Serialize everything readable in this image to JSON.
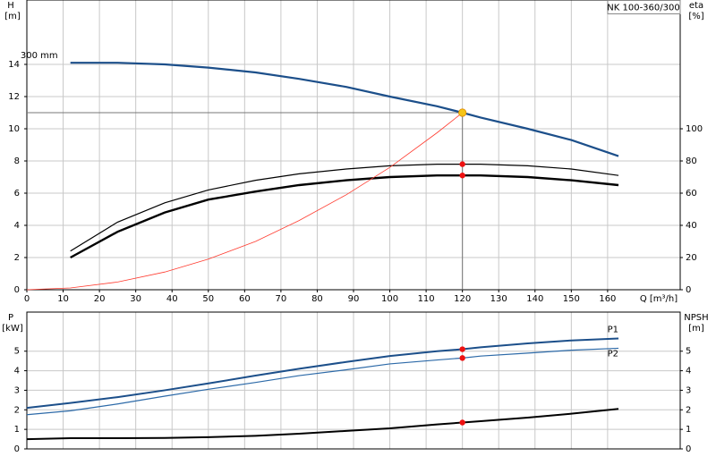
{
  "chart_data": [
    {
      "type": "line",
      "title": "NK 100-360/300",
      "xlabel": "Q [m³/h]",
      "ylabel": "H",
      "yunit": "[m]",
      "y2label": "eta",
      "y2unit": "[%]",
      "x": [
        0,
        12,
        25,
        38,
        50,
        63,
        75,
        88,
        100,
        113,
        120,
        125,
        138,
        150,
        163
      ],
      "xlim": [
        0,
        180
      ],
      "xticks": [
        0,
        10,
        20,
        30,
        40,
        50,
        60,
        70,
        80,
        90,
        100,
        110,
        120,
        130,
        140,
        150,
        160
      ],
      "ylim": [
        0,
        18
      ],
      "yticks": [
        0,
        2,
        4,
        6,
        8,
        10,
        12,
        14
      ],
      "y2lim": [
        0,
        180
      ],
      "y2ticks": [
        0,
        20,
        40,
        60,
        80,
        100
      ],
      "grid": true,
      "series": [
        {
          "name": "300 mm",
          "color": "#1c4f8a",
          "axis": "y",
          "values": [
            null,
            14.1,
            14.1,
            14.0,
            13.8,
            13.5,
            13.1,
            12.6,
            12.0,
            11.4,
            11.0,
            10.7,
            10.0,
            9.3,
            8.3
          ]
        },
        {
          "color": "#000000",
          "axis": "y2",
          "values": [
            null,
            24,
            42,
            54,
            62,
            68,
            72,
            75,
            77,
            78,
            78,
            78,
            77,
            75,
            71
          ]
        },
        {
          "color": "#000000",
          "axis": "y2",
          "values": [
            null,
            20,
            36,
            48,
            56,
            61,
            65,
            68,
            70,
            71,
            71,
            71,
            70,
            68,
            65
          ]
        },
        {
          "color": "#ff3b2f",
          "axis": "y",
          "values": [
            0,
            0.11,
            0.48,
            1.1,
            1.9,
            3.0,
            4.3,
            5.9,
            7.6,
            9.75,
            11.0,
            null,
            null,
            null,
            null
          ]
        }
      ],
      "operating_point": {
        "x": 120,
        "y": 11,
        "color": "#f5c518"
      },
      "duty_points": {
        "x": 120,
        "axis": "y2",
        "color": "#ee1111",
        "values": [
          78,
          71
        ]
      }
    },
    {
      "type": "line",
      "ylabel": "P",
      "yunit": "[kW]",
      "y2label": "NPSH",
      "y2unit": "[m]",
      "x": [
        0,
        12,
        25,
        38,
        50,
        63,
        75,
        88,
        100,
        113,
        120,
        125,
        138,
        150,
        163
      ],
      "xlim": [
        0,
        180
      ],
      "ylim": [
        0,
        7
      ],
      "yticks": [
        0,
        1,
        2,
        3,
        4,
        5
      ],
      "y2lim": [
        0,
        7
      ],
      "y2ticks": [
        0,
        1,
        2,
        3,
        4,
        5
      ],
      "grid": true,
      "series": [
        {
          "name": "P1",
          "color": "#1c4f8a",
          "axis": "y",
          "values": [
            2.1,
            2.35,
            2.65,
            3.0,
            3.35,
            3.75,
            4.1,
            4.45,
            4.75,
            5.0,
            5.1,
            5.2,
            5.4,
            5.55,
            5.65
          ]
        },
        {
          "name": "P2",
          "color": "#2d6aa8",
          "axis": "y",
          "values": [
            1.75,
            1.95,
            2.3,
            2.7,
            3.05,
            3.4,
            3.75,
            4.05,
            4.35,
            4.55,
            4.65,
            4.75,
            4.9,
            5.05,
            5.15
          ]
        },
        {
          "color": "#000000",
          "axis": "y2",
          "values": [
            0.5,
            0.55,
            0.55,
            0.56,
            0.6,
            0.67,
            0.78,
            0.92,
            1.05,
            1.25,
            1.35,
            1.42,
            1.6,
            1.8,
            2.05
          ]
        }
      ],
      "duty_points": {
        "x": 120,
        "axis": "y",
        "color": "#ee1111",
        "values": [
          5.1,
          4.65,
          1.35
        ]
      }
    }
  ]
}
